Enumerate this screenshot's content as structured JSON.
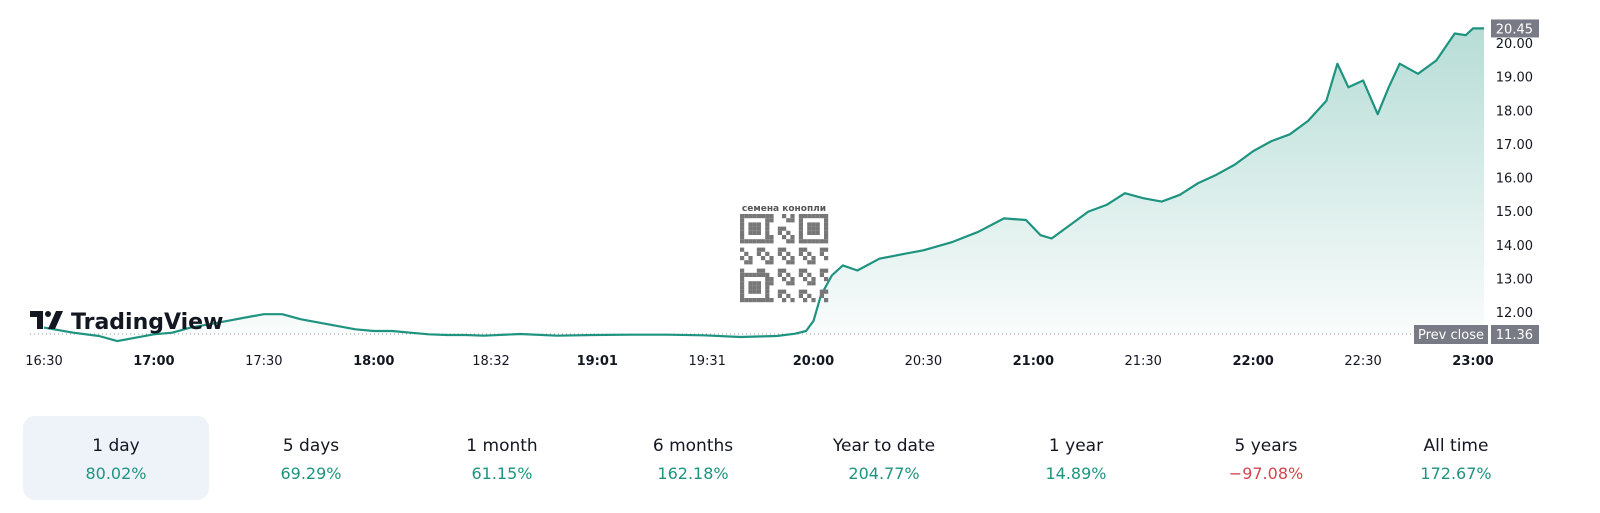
{
  "colors": {
    "line": "#1e9480",
    "positive": "#1e9480",
    "negative": "#d0454f",
    "label_bg": "#787b86",
    "active_tab_bg": "#eef2f9"
  },
  "watermark": {
    "brand": "TradingView",
    "logo_icon": "tradingview-logo-icon"
  },
  "qr": {
    "caption": "семена конопли",
    "icon": "qr-code-icon"
  },
  "price_axis": {
    "current_label": "20.45",
    "prev_close_label": "Prev close",
    "prev_close_value": "11.36"
  },
  "chart_data": {
    "type": "area",
    "title": "",
    "xlabel": "",
    "ylabel": "",
    "ylim": [
      11.36,
      20.85
    ],
    "yticks": [
      "20.00",
      "19.00",
      "18.00",
      "17.00",
      "16.00",
      "15.00",
      "14.00",
      "13.00",
      "12.00"
    ],
    "xticks": [
      {
        "label": "16:30",
        "bold": false
      },
      {
        "label": "17:00",
        "bold": true
      },
      {
        "label": "17:30",
        "bold": false
      },
      {
        "label": "18:00",
        "bold": true
      },
      {
        "label": "18:32",
        "bold": false
      },
      {
        "label": "19:01",
        "bold": true
      },
      {
        "label": "19:31",
        "bold": false
      },
      {
        "label": "20:00",
        "bold": true
      },
      {
        "label": "20:30",
        "bold": false
      },
      {
        "label": "21:00",
        "bold": true
      },
      {
        "label": "21:30",
        "bold": false
      },
      {
        "label": "22:00",
        "bold": true
      },
      {
        "label": "22:30",
        "bold": false
      },
      {
        "label": "23:00",
        "bold": true
      }
    ],
    "time_range": [
      "16:30",
      "23:05"
    ],
    "prev_close": 11.36,
    "last": 20.45,
    "series": [
      {
        "points": [
          [
            "16:30",
            11.55
          ],
          [
            "16:38",
            11.4
          ],
          [
            "16:45",
            11.3
          ],
          [
            "16:50",
            11.15
          ],
          [
            "16:55",
            11.25
          ],
          [
            "17:00",
            11.35
          ],
          [
            "17:05",
            11.4
          ],
          [
            "17:10",
            11.55
          ],
          [
            "17:15",
            11.65
          ],
          [
            "17:20",
            11.75
          ],
          [
            "17:25",
            11.85
          ],
          [
            "17:30",
            11.95
          ],
          [
            "17:35",
            11.95
          ],
          [
            "17:40",
            11.8
          ],
          [
            "17:45",
            11.7
          ],
          [
            "17:50",
            11.6
          ],
          [
            "17:55",
            11.5
          ],
          [
            "18:00",
            11.45
          ],
          [
            "18:05",
            11.45
          ],
          [
            "18:10",
            11.4
          ],
          [
            "18:15",
            11.35
          ],
          [
            "18:20",
            11.33
          ],
          [
            "18:25",
            11.33
          ],
          [
            "18:30",
            11.31
          ],
          [
            "18:40",
            11.36
          ],
          [
            "18:50",
            11.31
          ],
          [
            "19:00",
            11.33
          ],
          [
            "19:10",
            11.34
          ],
          [
            "19:20",
            11.34
          ],
          [
            "19:30",
            11.32
          ],
          [
            "19:40",
            11.27
          ],
          [
            "19:50",
            11.3
          ],
          [
            "19:55",
            11.37
          ],
          [
            "19:58",
            11.45
          ],
          [
            "20:00",
            11.75
          ],
          [
            "20:02",
            12.5
          ],
          [
            "20:05",
            13.1
          ],
          [
            "20:08",
            13.4
          ],
          [
            "20:12",
            13.25
          ],
          [
            "20:18",
            13.6
          ],
          [
            "20:25",
            13.75
          ],
          [
            "20:30",
            13.85
          ],
          [
            "20:38",
            14.1
          ],
          [
            "20:45",
            14.4
          ],
          [
            "20:52",
            14.8
          ],
          [
            "20:58",
            14.75
          ],
          [
            "21:02",
            14.3
          ],
          [
            "21:05",
            14.2
          ],
          [
            "21:10",
            14.6
          ],
          [
            "21:15",
            15.0
          ],
          [
            "21:20",
            15.2
          ],
          [
            "21:25",
            15.55
          ],
          [
            "21:30",
            15.4
          ],
          [
            "21:35",
            15.3
          ],
          [
            "21:40",
            15.5
          ],
          [
            "21:45",
            15.85
          ],
          [
            "21:50",
            16.1
          ],
          [
            "21:55",
            16.4
          ],
          [
            "22:00",
            16.8
          ],
          [
            "22:05",
            17.1
          ],
          [
            "22:10",
            17.3
          ],
          [
            "22:15",
            17.7
          ],
          [
            "22:20",
            18.3
          ],
          [
            "22:23",
            19.4
          ],
          [
            "22:26",
            18.7
          ],
          [
            "22:30",
            18.9
          ],
          [
            "22:34",
            17.9
          ],
          [
            "22:37",
            18.7
          ],
          [
            "22:40",
            19.4
          ],
          [
            "22:45",
            19.1
          ],
          [
            "22:50",
            19.5
          ],
          [
            "22:55",
            20.3
          ],
          [
            "22:58",
            20.25
          ],
          [
            "23:00",
            20.45
          ],
          [
            "23:03",
            20.45
          ]
        ]
      }
    ]
  },
  "periods": [
    {
      "label": "1 day",
      "value": "80.02%",
      "active": true,
      "positive": true
    },
    {
      "label": "5 days",
      "value": "69.29%",
      "active": false,
      "positive": true
    },
    {
      "label": "1 month",
      "value": "61.15%",
      "active": false,
      "positive": true
    },
    {
      "label": "6 months",
      "value": "162.18%",
      "active": false,
      "positive": true
    },
    {
      "label": "Year to date",
      "value": "204.77%",
      "active": false,
      "positive": true
    },
    {
      "label": "1 year",
      "value": "14.89%",
      "active": false,
      "positive": true
    },
    {
      "label": "5 years",
      "value": "−97.08%",
      "active": false,
      "positive": false
    },
    {
      "label": "All time",
      "value": "172.67%",
      "active": false,
      "positive": true
    }
  ]
}
